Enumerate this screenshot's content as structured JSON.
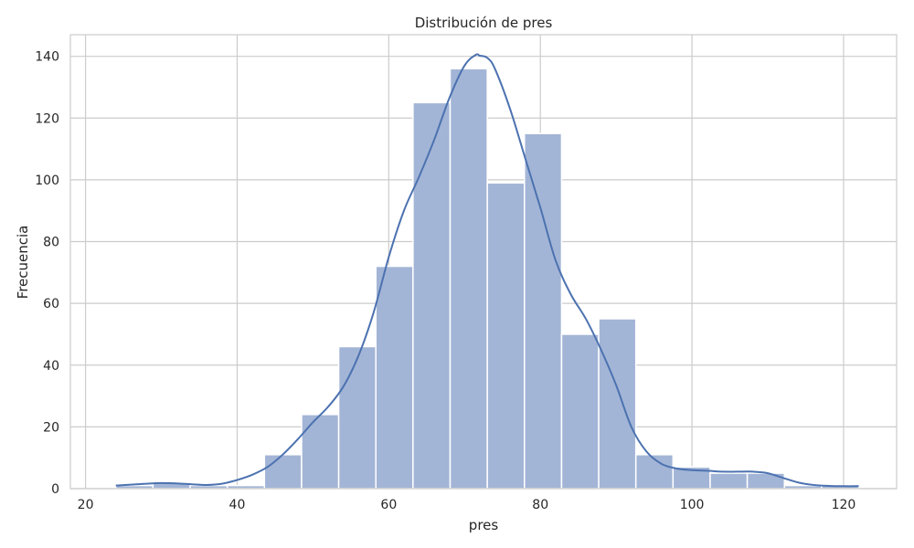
{
  "chart_data": {
    "type": "bar",
    "title": "Distribución de pres",
    "xlabel": "pres",
    "ylabel": "Frecuencia",
    "xlim": [
      18,
      127
    ],
    "ylim": [
      0,
      147
    ],
    "xticks": [
      20,
      40,
      60,
      80,
      100,
      120
    ],
    "yticks": [
      0,
      20,
      40,
      60,
      80,
      100,
      120,
      140
    ],
    "grid": true,
    "bar_color": "#a3b5d6",
    "line_color": "#4c72b0",
    "bins": [
      {
        "x0": 24.0,
        "x1": 28.9,
        "count": 1
      },
      {
        "x0": 28.9,
        "x1": 33.8,
        "count": 2
      },
      {
        "x0": 33.8,
        "x1": 38.7,
        "count": 1
      },
      {
        "x0": 38.7,
        "x1": 43.6,
        "count": 1
      },
      {
        "x0": 43.6,
        "x1": 48.5,
        "count": 11
      },
      {
        "x0": 48.5,
        "x1": 53.4,
        "count": 24
      },
      {
        "x0": 53.4,
        "x1": 58.3,
        "count": 46
      },
      {
        "x0": 58.3,
        "x1": 63.2,
        "count": 72
      },
      {
        "x0": 63.2,
        "x1": 68.1,
        "count": 125
      },
      {
        "x0": 68.1,
        "x1": 73.0,
        "count": 136
      },
      {
        "x0": 73.0,
        "x1": 77.9,
        "count": 99
      },
      {
        "x0": 77.9,
        "x1": 82.8,
        "count": 115
      },
      {
        "x0": 82.8,
        "x1": 87.7,
        "count": 50
      },
      {
        "x0": 87.7,
        "x1": 92.6,
        "count": 55
      },
      {
        "x0": 92.6,
        "x1": 97.5,
        "count": 11
      },
      {
        "x0": 97.5,
        "x1": 102.4,
        "count": 7
      },
      {
        "x0": 102.4,
        "x1": 107.3,
        "count": 5
      },
      {
        "x0": 107.3,
        "x1": 112.2,
        "count": 5
      },
      {
        "x0": 112.2,
        "x1": 117.1,
        "count": 1
      },
      {
        "x0": 117.1,
        "x1": 122.0,
        "count": 1
      }
    ],
    "kde": {
      "x": [
        24,
        26,
        28,
        30,
        32,
        34,
        36,
        38,
        40,
        42,
        44,
        46,
        48,
        50,
        52,
        54,
        56,
        58,
        60,
        62,
        64,
        66,
        68,
        70,
        71.5,
        72,
        73,
        74,
        76,
        78,
        80,
        82,
        84,
        86,
        88,
        90,
        92,
        94,
        96,
        98,
        100,
        102,
        104,
        106,
        108,
        110,
        112,
        114,
        116,
        118,
        120,
        122
      ],
      "y": [
        1.0,
        1.3,
        1.6,
        1.8,
        1.7,
        1.4,
        1.2,
        1.6,
        2.8,
        4.5,
        7.0,
        11.0,
        16.0,
        21.5,
        26.5,
        33.0,
        43.0,
        57.0,
        75.0,
        90.0,
        101.0,
        113.0,
        126.5,
        137.0,
        140.5,
        140.2,
        139.5,
        136.0,
        123.0,
        107.0,
        91.0,
        74.0,
        63.0,
        55.0,
        45.0,
        33.5,
        20.0,
        12.0,
        8.0,
        6.5,
        6.0,
        5.8,
        5.5,
        5.5,
        5.5,
        5.0,
        3.5,
        2.0,
        1.2,
        0.9,
        0.8,
        0.8
      ]
    }
  }
}
